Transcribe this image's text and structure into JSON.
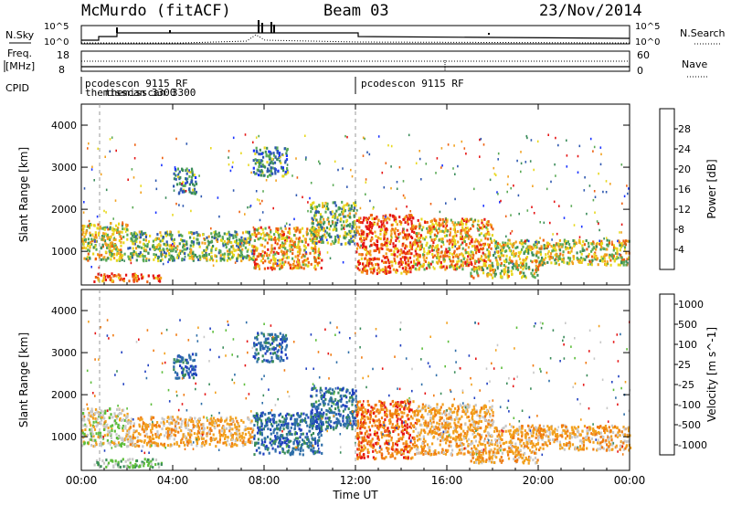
{
  "header": {
    "site": "McMurdo (fitACF)",
    "beam": "Beam 03",
    "date": "23/Nov/2014"
  },
  "strips": {
    "nsky_label": "N.Sky",
    "nsky_ticks": [
      "10^5",
      "10^0"
    ],
    "nsearch_label": "N.Search",
    "nsearch_ticks": [
      "10^5",
      "10^0"
    ],
    "freq_label_line1": "Freq.",
    "freq_label_line2": "[MHz]",
    "freq_ticks": [
      "18",
      "8"
    ],
    "nave_label": "Nave",
    "nave_ticks": [
      "60",
      "0"
    ],
    "cpid_label": "CPID"
  },
  "cpid_annotations": [
    {
      "time_h": 0.05,
      "text": "pcodescon 9115 RF"
    },
    {
      "time_h": 0.05,
      "text": "themisscan 3300"
    },
    {
      "time_h": 12.0,
      "text": "pcodescon 9115 RF"
    }
  ],
  "x_axis": {
    "label": "Time UT",
    "ticks": [
      "00:00",
      "04:00",
      "08:00",
      "12:00",
      "16:00",
      "20:00",
      "00:00"
    ],
    "range_h": [
      0,
      24
    ]
  },
  "power_panel": {
    "ylabel": "Slant Range [km]",
    "yticks": [
      "1000",
      "2000",
      "3000",
      "4000"
    ],
    "colorbar_label": "Power [dB]",
    "colorbar_ticks": [
      "4",
      "8",
      "12",
      "16",
      "20",
      "24",
      "28"
    ],
    "colors": [
      "#1a33ff",
      "#2e58b0",
      "#3a8c5a",
      "#5aaa55",
      "#e8d81e",
      "#f2a11e",
      "#ee6010",
      "#e51414"
    ]
  },
  "velocity_panel": {
    "ylabel": "Slant Range [km]",
    "yticks": [
      "1000",
      "2000",
      "3000",
      "4000"
    ],
    "colorbar_label": "Velocity [m s^-1]",
    "colorbar_ticks": [
      "1000",
      "500",
      "100",
      "25",
      "-25",
      "-100",
      "-500",
      "-1000"
    ],
    "colors": [
      "#1f3fc0",
      "#2e6ea8",
      "#3a8c5a",
      "#5cbd3a",
      "#c8c8c8",
      "#f2a11e",
      "#f07a10",
      "#e51414"
    ]
  },
  "chart_data": {
    "type": "heatmap",
    "title": "McMurdo (fitACF)  Beam 03  23/Nov/2014",
    "xlabel": "Time UT",
    "ylabel": "Slant Range [km]",
    "xlim_hours": [
      0,
      24
    ],
    "ylim_km": [
      200,
      4500
    ],
    "grid": false,
    "scatter_regions": [
      {
        "t0": 0.0,
        "t1": 2.0,
        "r0": 800,
        "r1": 1700,
        "power_db": 18,
        "velocity": -25
      },
      {
        "t0": 0.5,
        "t1": 3.5,
        "r0": 300,
        "r1": 500,
        "power_db": 26,
        "velocity": 25
      },
      {
        "t0": 2.0,
        "t1": 7.5,
        "r0": 800,
        "r1": 1500,
        "power_db": 16,
        "velocity": -100
      },
      {
        "t0": 4.0,
        "t1": 5.0,
        "r0": 2400,
        "r1": 3000,
        "power_db": 12,
        "velocity": 500
      },
      {
        "t0": 7.5,
        "t1": 9.0,
        "r0": 2800,
        "r1": 3500,
        "power_db": 12,
        "velocity": 500
      },
      {
        "t0": 7.5,
        "t1": 10.5,
        "r0": 600,
        "r1": 1600,
        "power_db": 22,
        "velocity": 500
      },
      {
        "t0": 10.0,
        "t1": 12.0,
        "r0": 1200,
        "r1": 2200,
        "power_db": 16,
        "velocity": 500
      },
      {
        "t0": 12.0,
        "t1": 14.5,
        "r0": 500,
        "r1": 1900,
        "power_db": 28,
        "velocity": -500
      },
      {
        "t0": 14.5,
        "t1": 18.0,
        "r0": 600,
        "r1": 1800,
        "power_db": 22,
        "velocity": -100
      },
      {
        "t0": 17.0,
        "t1": 20.0,
        "r0": 400,
        "r1": 700,
        "power_db": 20,
        "velocity": -100
      },
      {
        "t0": 18.0,
        "t1": 24.0,
        "r0": 700,
        "r1": 1300,
        "power_db": 18,
        "velocity": -100
      }
    ]
  }
}
